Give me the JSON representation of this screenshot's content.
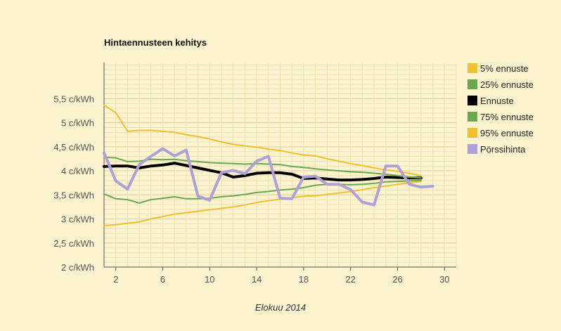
{
  "chart_data": {
    "type": "line",
    "title": "Hintaennusteen kehitys",
    "xlabel": "Elokuu 2014",
    "ylabel": "",
    "xlim": [
      1,
      31
    ],
    "ylim": [
      2,
      6.25
    ],
    "x_ticks": [
      2,
      6,
      10,
      14,
      18,
      22,
      26,
      30
    ],
    "y_ticks": [
      {
        "value": 2,
        "label": "2 c/kWh"
      },
      {
        "value": 2.5,
        "label": "2,5 c/kWh"
      },
      {
        "value": 3,
        "label": "3 c/kWh"
      },
      {
        "value": 3.5,
        "label": "3,5 c/kWh"
      },
      {
        "value": 4,
        "label": "4 c/kWh"
      },
      {
        "value": 4.5,
        "label": "4,5 c/kWh"
      },
      {
        "value": 5,
        "label": "5 c/kWh"
      },
      {
        "value": 5.5,
        "label": "5,5 c/kWh"
      }
    ],
    "grid": true,
    "legend_position": "right",
    "series": [
      {
        "name": "5% ennuste",
        "color": "#f0c030",
        "width": 2,
        "x": [
          1,
          2,
          3,
          4,
          5,
          6,
          7,
          8,
          9,
          10,
          11,
          12,
          13,
          14,
          15,
          16,
          17,
          18,
          19,
          20,
          21,
          22,
          23,
          24,
          25,
          26,
          27,
          28
        ],
        "y": [
          2.86,
          2.88,
          2.91,
          2.94,
          3.0,
          3.05,
          3.1,
          3.13,
          3.16,
          3.19,
          3.22,
          3.25,
          3.29,
          3.34,
          3.38,
          3.41,
          3.44,
          3.47,
          3.48,
          3.51,
          3.54,
          3.57,
          3.61,
          3.65,
          3.68,
          3.72,
          3.75,
          3.78
        ]
      },
      {
        "name": "25% ennuste",
        "color": "#6aa84f",
        "width": 2,
        "x": [
          1,
          2,
          3,
          4,
          5,
          6,
          7,
          8,
          9,
          10,
          11,
          12,
          13,
          14,
          15,
          16,
          17,
          18,
          19,
          20,
          21,
          22,
          23,
          24,
          25,
          26,
          27,
          28
        ],
        "y": [
          3.52,
          3.42,
          3.4,
          3.33,
          3.4,
          3.43,
          3.46,
          3.42,
          3.42,
          3.43,
          3.46,
          3.48,
          3.51,
          3.55,
          3.57,
          3.6,
          3.62,
          3.65,
          3.7,
          3.72,
          3.72,
          3.71,
          3.72,
          3.74,
          3.77,
          3.78,
          3.79,
          3.8
        ]
      },
      {
        "name": "Ennuste",
        "color": "#000000",
        "width": 4,
        "x": [
          1,
          2,
          3,
          4,
          5,
          6,
          7,
          8,
          9,
          10,
          11,
          12,
          13,
          14,
          15,
          16,
          17,
          18,
          19,
          20,
          21,
          22,
          23,
          24,
          25,
          26,
          27,
          28
        ],
        "y": [
          4.09,
          4.1,
          4.1,
          4.06,
          4.1,
          4.12,
          4.16,
          4.11,
          4.06,
          4.01,
          3.96,
          3.87,
          3.9,
          3.95,
          3.96,
          3.96,
          3.93,
          3.84,
          3.85,
          3.83,
          3.81,
          3.81,
          3.82,
          3.84,
          3.87,
          3.86,
          3.85,
          3.85
        ]
      },
      {
        "name": "75% ennuste",
        "color": "#6aa84f",
        "width": 2,
        "x": [
          1,
          2,
          3,
          4,
          5,
          6,
          7,
          8,
          9,
          10,
          11,
          12,
          13,
          14,
          15,
          16,
          17,
          18,
          19,
          20,
          21,
          22,
          23,
          24,
          25,
          26,
          27,
          28
        ],
        "y": [
          4.28,
          4.27,
          4.19,
          4.2,
          4.24,
          4.23,
          4.24,
          4.21,
          4.19,
          4.17,
          4.16,
          4.15,
          4.14,
          4.15,
          4.14,
          4.13,
          4.09,
          4.07,
          4.04,
          4.02,
          4.0,
          3.98,
          3.97,
          3.95,
          3.93,
          3.9,
          3.87,
          3.85
        ]
      },
      {
        "name": "95% ennuste",
        "color": "#f0c030",
        "width": 2,
        "x": [
          1,
          2,
          3,
          4,
          5,
          6,
          7,
          8,
          9,
          10,
          11,
          12,
          13,
          14,
          15,
          16,
          17,
          18,
          19,
          20,
          21,
          22,
          23,
          24,
          25,
          26,
          27,
          28
        ],
        "y": [
          5.36,
          5.21,
          4.82,
          4.84,
          4.84,
          4.82,
          4.8,
          4.75,
          4.71,
          4.66,
          4.6,
          4.55,
          4.52,
          4.49,
          4.45,
          4.42,
          4.37,
          4.33,
          4.31,
          4.25,
          4.2,
          4.15,
          4.11,
          4.06,
          4.02,
          3.99,
          3.95,
          3.9
        ]
      },
      {
        "name": "Pörssihinta",
        "color": "#b0a0d8",
        "width": 4,
        "x": [
          1,
          2,
          3,
          4,
          5,
          6,
          7,
          8,
          9,
          10,
          11,
          12,
          13,
          14,
          15,
          16,
          17,
          18,
          19,
          20,
          21,
          22,
          23,
          24,
          25,
          26,
          27,
          28,
          29
        ],
        "y": [
          4.37,
          3.79,
          3.62,
          4.13,
          4.3,
          4.46,
          4.31,
          4.43,
          3.47,
          3.39,
          3.96,
          4.01,
          3.94,
          4.2,
          4.3,
          3.43,
          3.42,
          3.87,
          3.89,
          3.72,
          3.72,
          3.61,
          3.35,
          3.29,
          4.1,
          4.1,
          3.72,
          3.66,
          3.68
        ]
      }
    ]
  }
}
